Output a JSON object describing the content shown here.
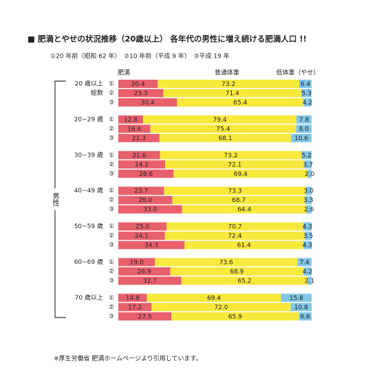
{
  "chart_data": {
    "type": "stacked_bar",
    "title": "■ 肥満とやせの状況推移（20歳以上） 各年代の男性に増え続ける肥満人口 !!",
    "subtitle": "①20 年前（昭和 62 年）　②10 年前（平成 9 年）　③平成 19 年",
    "side_label": "男性",
    "note": "※厚生労働省 肥満ホームページより引用しています。",
    "groups": [
      [
        "20 歳以上",
        "総数"
      ],
      [
        "20~29 歳"
      ],
      [
        "30~39 歳"
      ],
      [
        "40~49 歳"
      ],
      [
        "50~59 歳"
      ],
      [
        "60~69 歳"
      ],
      [
        "70 歳以上"
      ]
    ],
    "categories": [
      "①",
      "②",
      "③",
      "①",
      "②",
      "③",
      "①",
      "②",
      "③",
      "①",
      "②",
      "③",
      "①",
      "②",
      "③",
      "①",
      "②",
      "③",
      "①",
      "②",
      "③"
    ],
    "xlim": [
      0,
      100
    ],
    "series": [
      {
        "name": "肥満",
        "color": "#e9606d",
        "values": [
          20.4,
          23.3,
          30.4,
          12.8,
          16.6,
          21.3,
          21.6,
          24.2,
          28.6,
          23.7,
          28.0,
          33.0,
          25.0,
          24.1,
          34.3,
          19.0,
          26.9,
          32.7,
          14.8,
          17.2,
          27.5
        ],
        "value_labels": [
          "20.4",
          "23.3",
          "30.4",
          "12.8",
          "16.6",
          "21.3",
          "21.6",
          "24.2",
          "28.6",
          "23.7",
          "28.0",
          "33.0",
          "25.0",
          "24.1",
          "34.3",
          "19.0",
          "26.9",
          "32.7",
          "14.8",
          "17.2",
          "27.5"
        ]
      },
      {
        "name": "普通体重",
        "color": "#f8e83c",
        "values": [
          73.2,
          71.4,
          65.4,
          79.4,
          75.4,
          68.1,
          73.2,
          72.1,
          69.4,
          73.3,
          68.7,
          64.4,
          70.7,
          72.4,
          61.4,
          73.6,
          68.9,
          65.2,
          69.4,
          72.0,
          65.9
        ],
        "value_labels": [
          "73.2",
          "71.4",
          "65.4",
          "79.4",
          "75.4",
          "68.1",
          "73.2",
          "72.1",
          "69.4",
          "73.3",
          "68.7",
          "64.4",
          "70.7",
          "72.4",
          "61.4",
          "73.6",
          "68.9",
          "65.2",
          "69.4",
          "72.0",
          "65.9"
        ]
      },
      {
        "name": "低体重（やせ）",
        "color": "#82c6e8",
        "values": [
          6.4,
          5.3,
          4.2,
          7.8,
          8.0,
          10.6,
          5.2,
          3.7,
          2.0,
          3.0,
          3.3,
          2.6,
          4.3,
          3.5,
          4.3,
          7.4,
          4.2,
          2.1,
          15.8,
          10.8,
          6.6
        ],
        "value_labels": [
          "6.4",
          "5.3",
          "4.2",
          "7.8",
          "8.0",
          "10.6",
          "5.2",
          "3.7",
          "2.0",
          "3.0",
          "3.3",
          "2.6",
          "4.3",
          "3.5",
          "4.3",
          "7.4",
          "4.2",
          "2.1",
          "15.8",
          "10.8",
          "6.6"
        ]
      }
    ]
  }
}
